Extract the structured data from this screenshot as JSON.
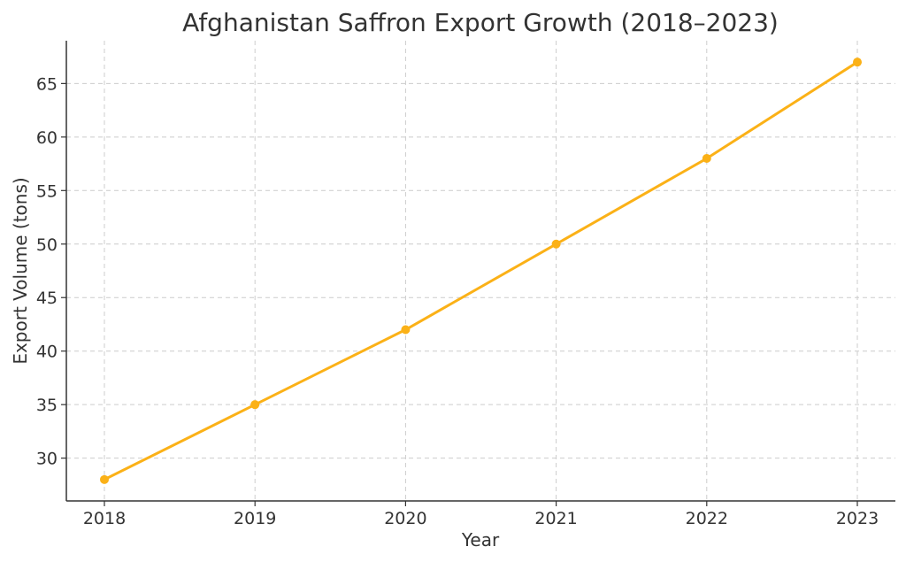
{
  "chart_data": {
    "type": "line",
    "title": "Afghanistan Saffron Export Growth (2018–2023)",
    "xlabel": "Year",
    "ylabel": "Export Volume (tons)",
    "x": [
      "2018",
      "2019",
      "2020",
      "2021",
      "2022",
      "2023"
    ],
    "series": [
      {
        "values": [
          28,
          35,
          42,
          50,
          58,
          67
        ],
        "color": "#fbb117"
      }
    ],
    "ylim": [
      26,
      69
    ],
    "yticks": [
      30,
      35,
      40,
      45,
      50,
      55,
      60,
      65
    ],
    "grid": true,
    "line_color": "#fbb117",
    "axis_color": "#333333",
    "grid_color": "#cccccc"
  }
}
